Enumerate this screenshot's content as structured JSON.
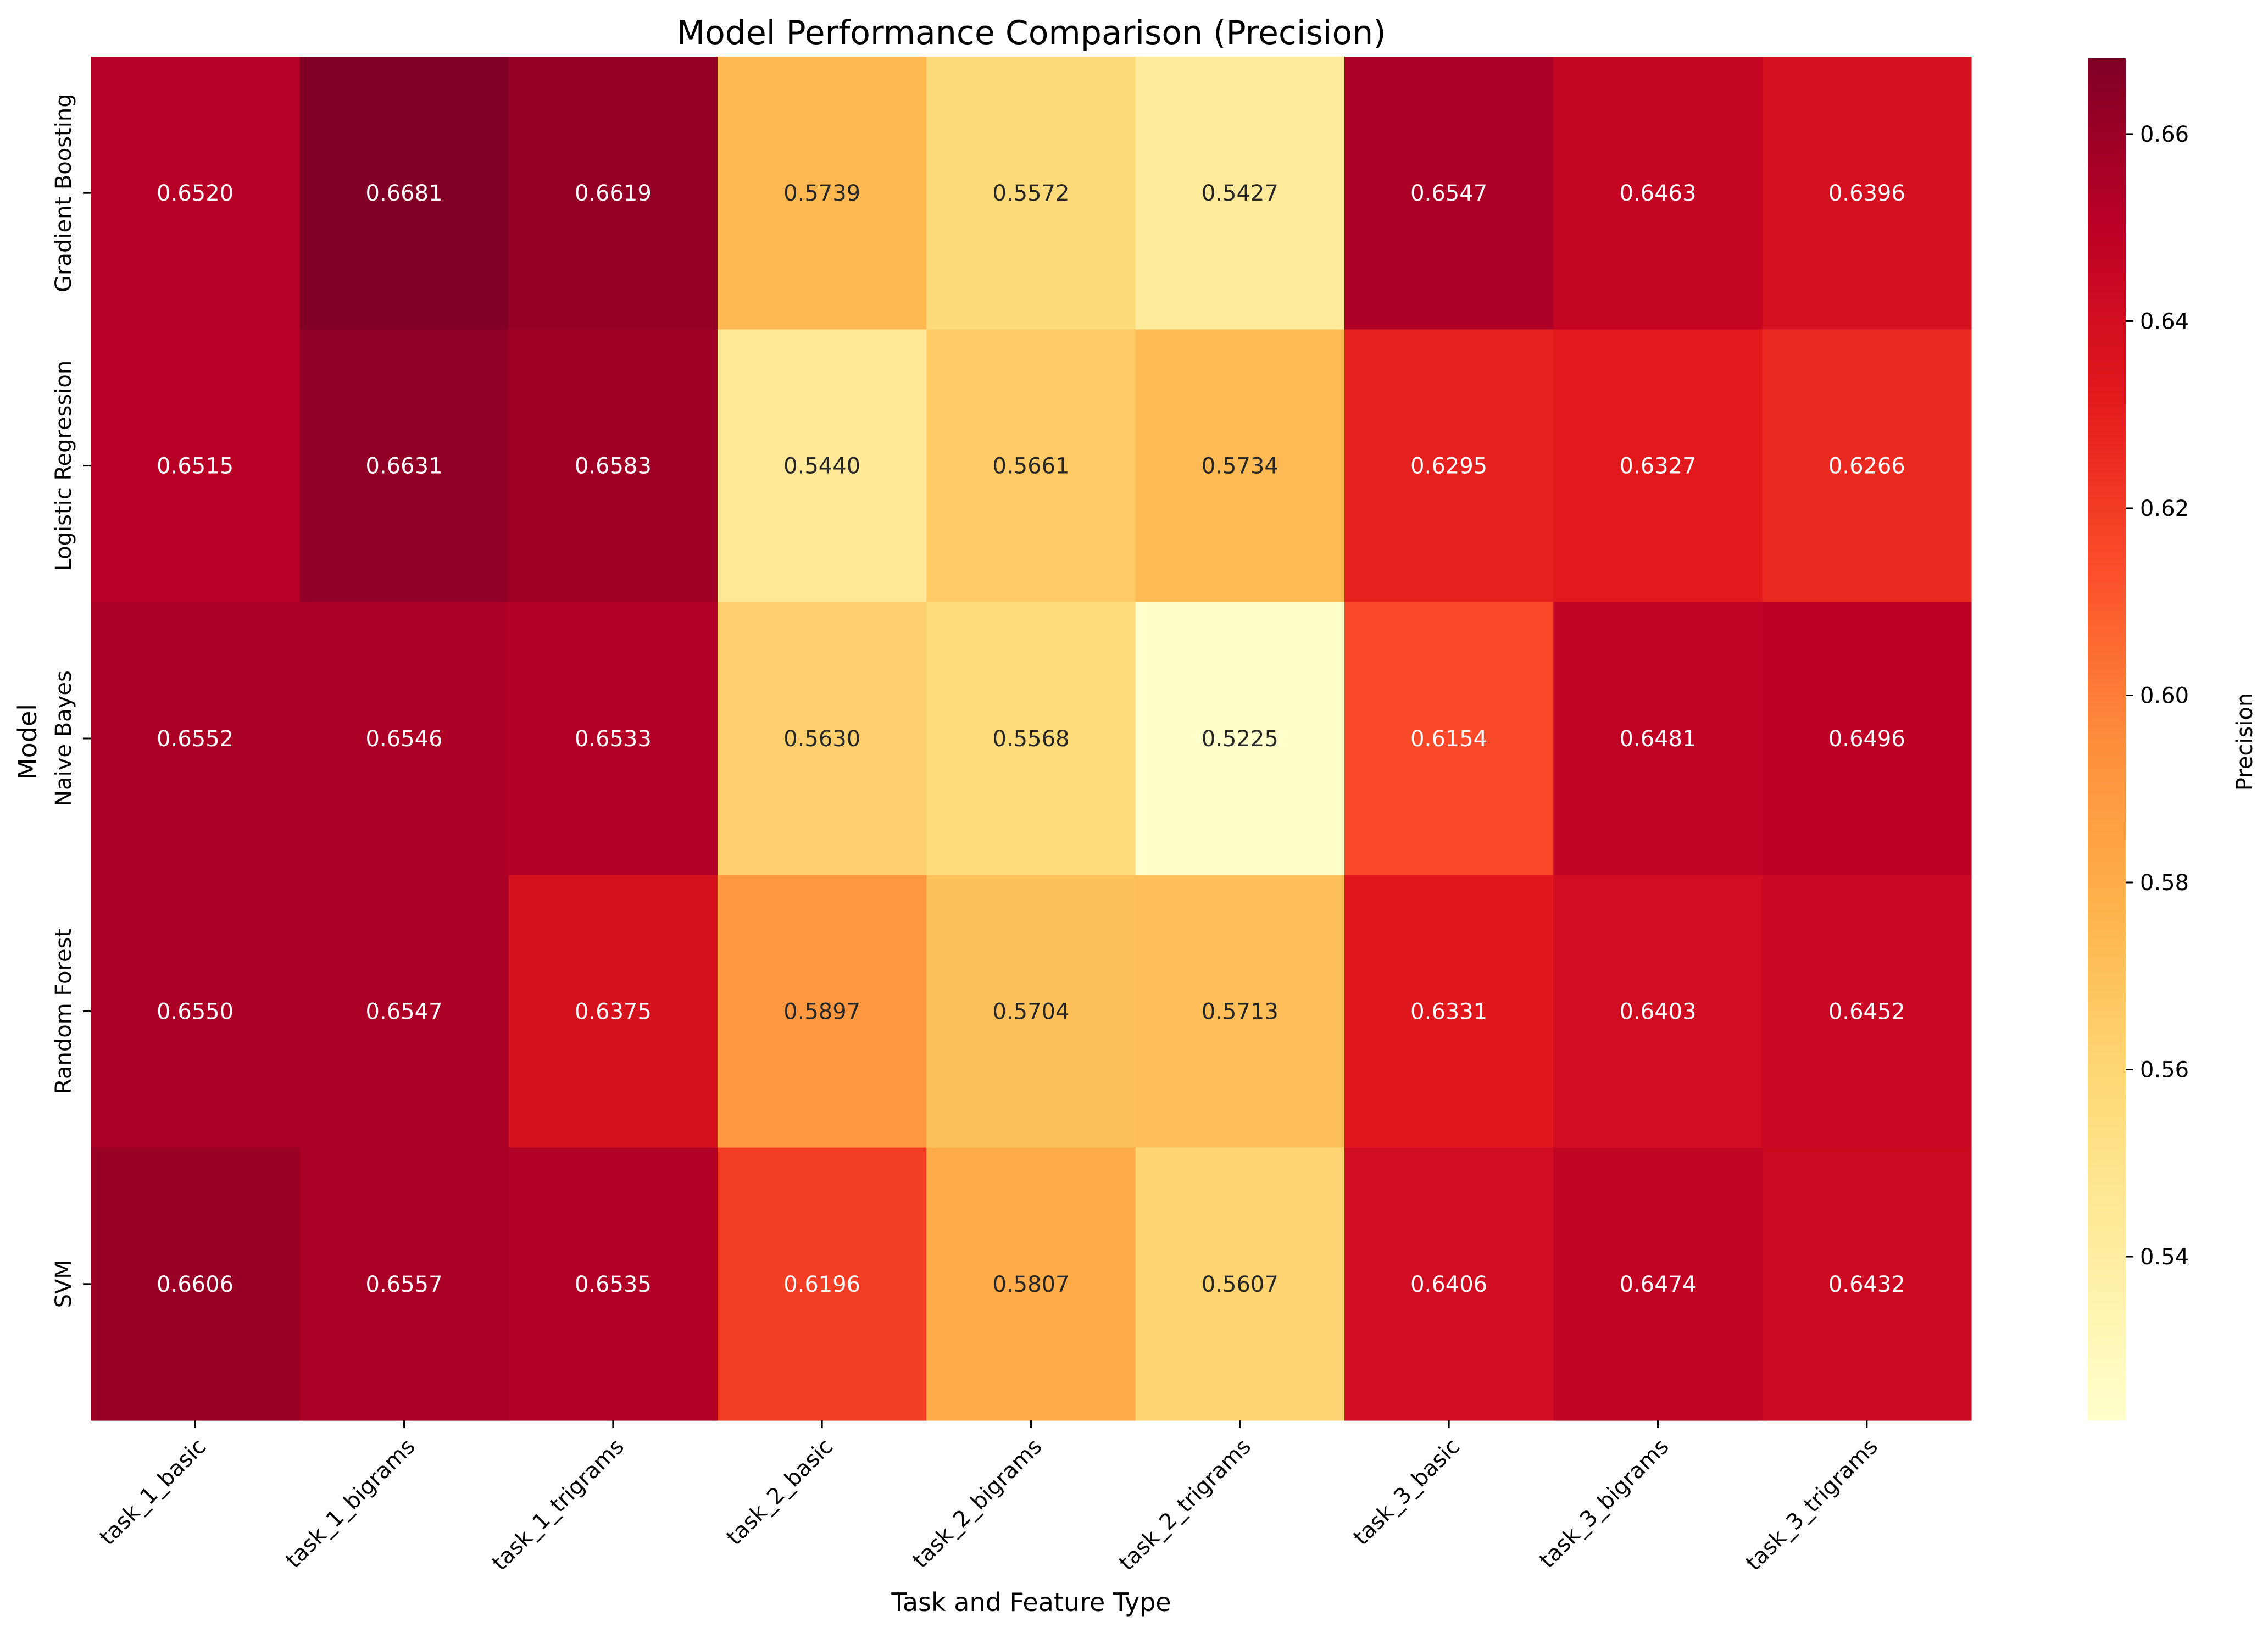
{
  "chart_data": {
    "type": "heatmap",
    "title": "Model Performance Comparison (Precision)",
    "xlabel": "Task and Feature Type",
    "ylabel": "Model",
    "x_categories": [
      "task_1_basic",
      "task_1_bigrams",
      "task_1_trigrams",
      "task_2_basic",
      "task_2_bigrams",
      "task_2_trigrams",
      "task_3_basic",
      "task_3_bigrams",
      "task_3_trigrams"
    ],
    "y_categories": [
      "Gradient Boosting",
      "Logistic Regression",
      "Naive Bayes",
      "Random Forest",
      "SVM"
    ],
    "values": [
      [
        0.652,
        0.6681,
        0.6619,
        0.5739,
        0.5572,
        0.5427,
        0.6547,
        0.6463,
        0.6396
      ],
      [
        0.6515,
        0.6631,
        0.6583,
        0.544,
        0.5661,
        0.5734,
        0.6295,
        0.6327,
        0.6266
      ],
      [
        0.6552,
        0.6546,
        0.6533,
        0.563,
        0.5568,
        0.5225,
        0.6154,
        0.6481,
        0.6496
      ],
      [
        0.655,
        0.6547,
        0.6375,
        0.5897,
        0.5704,
        0.5713,
        0.6331,
        0.6403,
        0.6452
      ],
      [
        0.6606,
        0.6557,
        0.6535,
        0.6196,
        0.5807,
        0.5607,
        0.6406,
        0.6474,
        0.6432
      ]
    ],
    "value_format_decimals": 4,
    "colormap": "YlOrRd",
    "colorbar": {
      "label": "Precision",
      "range": [
        0.5225,
        0.6681
      ],
      "ticks": [
        0.54,
        0.56,
        0.58,
        0.6,
        0.62,
        0.64,
        0.66
      ]
    },
    "colors": {
      "low": "#ffffcc",
      "high": "#800026",
      "annotation_dark": "#262626",
      "annotation_light": "#ffffff"
    }
  }
}
